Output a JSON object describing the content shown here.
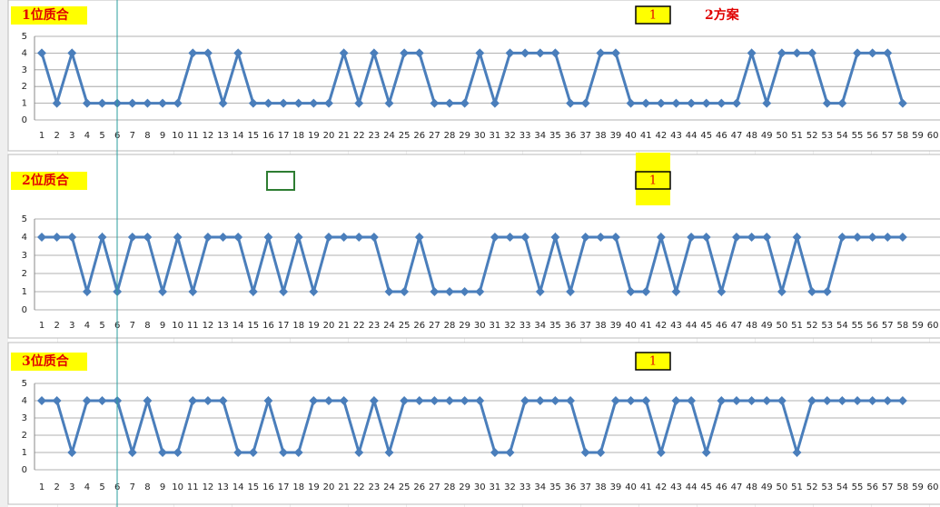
{
  "chart_data": [
    {
      "type": "line",
      "title": "1位质合",
      "box_label": "1",
      "annotation": "2方案",
      "color": "#4a7ebb",
      "categories": [
        "1",
        "2",
        "3",
        "4",
        "5",
        "6",
        "7",
        "8",
        "9",
        "10",
        "11",
        "12",
        "13",
        "14",
        "15",
        "16",
        "17",
        "18",
        "19",
        "20",
        "21",
        "22",
        "23",
        "24",
        "25",
        "26",
        "27",
        "28",
        "29",
        "30",
        "31",
        "32",
        "33",
        "34",
        "35",
        "36",
        "37",
        "38",
        "39",
        "40",
        "41",
        "42",
        "43",
        "44",
        "45",
        "46",
        "47",
        "48",
        "49",
        "50",
        "51",
        "52",
        "53",
        "54",
        "55",
        "56",
        "57",
        "58",
        "59",
        "60"
      ],
      "values": [
        4,
        1,
        4,
        1,
        1,
        1,
        1,
        1,
        1,
        1,
        4,
        4,
        1,
        4,
        1,
        1,
        1,
        1,
        1,
        1,
        4,
        1,
        4,
        1,
        4,
        4,
        1,
        1,
        1,
        4,
        1,
        4,
        4,
        4,
        4,
        1,
        1,
        4,
        4,
        1,
        1,
        1,
        1,
        1,
        1,
        1,
        1,
        4,
        1,
        4,
        4,
        4,
        1,
        1,
        4,
        4,
        4,
        1,
        null,
        null
      ],
      "ylim": [
        0,
        5
      ],
      "yticks": [
        0,
        1,
        2,
        3,
        4,
        5
      ],
      "grid": true
    },
    {
      "type": "line",
      "title": "2位质合",
      "box_label": "1",
      "color": "#4a7ebb",
      "categories": [
        "1",
        "2",
        "3",
        "4",
        "5",
        "6",
        "7",
        "8",
        "9",
        "10",
        "11",
        "12",
        "13",
        "14",
        "15",
        "16",
        "17",
        "18",
        "19",
        "20",
        "21",
        "22",
        "23",
        "24",
        "25",
        "26",
        "27",
        "28",
        "29",
        "30",
        "31",
        "32",
        "33",
        "34",
        "35",
        "36",
        "37",
        "38",
        "39",
        "40",
        "41",
        "42",
        "43",
        "44",
        "45",
        "46",
        "47",
        "48",
        "49",
        "50",
        "51",
        "52",
        "53",
        "54",
        "55",
        "56",
        "57",
        "58",
        "59",
        "60"
      ],
      "values": [
        4,
        4,
        4,
        1,
        4,
        1,
        4,
        4,
        1,
        4,
        1,
        4,
        4,
        4,
        1,
        4,
        1,
        4,
        1,
        4,
        4,
        4,
        4,
        1,
        1,
        4,
        1,
        1,
        1,
        1,
        4,
        4,
        4,
        1,
        4,
        1,
        4,
        4,
        4,
        1,
        1,
        4,
        1,
        4,
        4,
        1,
        4,
        4,
        4,
        1,
        4,
        1,
        1,
        4,
        4,
        4,
        4,
        4,
        null,
        null
      ],
      "ylim": [
        0,
        5
      ],
      "yticks": [
        0,
        1,
        2,
        3,
        4,
        5
      ],
      "grid": true
    },
    {
      "type": "line",
      "title": "3位质合",
      "box_label": "1",
      "color": "#4a7ebb",
      "categories": [
        "1",
        "2",
        "3",
        "4",
        "5",
        "6",
        "7",
        "8",
        "9",
        "10",
        "11",
        "12",
        "13",
        "14",
        "15",
        "16",
        "17",
        "18",
        "19",
        "20",
        "21",
        "22",
        "23",
        "24",
        "25",
        "26",
        "27",
        "28",
        "29",
        "30",
        "31",
        "32",
        "33",
        "34",
        "35",
        "36",
        "37",
        "38",
        "39",
        "40",
        "41",
        "42",
        "43",
        "44",
        "45",
        "46",
        "47",
        "48",
        "49",
        "50",
        "51",
        "52",
        "53",
        "54",
        "55",
        "56",
        "57",
        "58",
        "59",
        "60"
      ],
      "values": [
        4,
        4,
        1,
        4,
        4,
        4,
        1,
        4,
        1,
        1,
        4,
        4,
        4,
        1,
        1,
        4,
        1,
        1,
        4,
        4,
        4,
        1,
        4,
        1,
        4,
        4,
        4,
        4,
        4,
        4,
        1,
        1,
        4,
        4,
        4,
        4,
        1,
        1,
        4,
        4,
        4,
        1,
        4,
        4,
        1,
        4,
        4,
        4,
        4,
        4,
        1,
        4,
        4,
        4,
        4,
        4,
        4,
        4,
        null,
        null
      ],
      "ylim": [
        0,
        5
      ],
      "yticks": [
        0,
        1,
        2,
        3,
        4,
        5
      ],
      "grid": true
    }
  ]
}
